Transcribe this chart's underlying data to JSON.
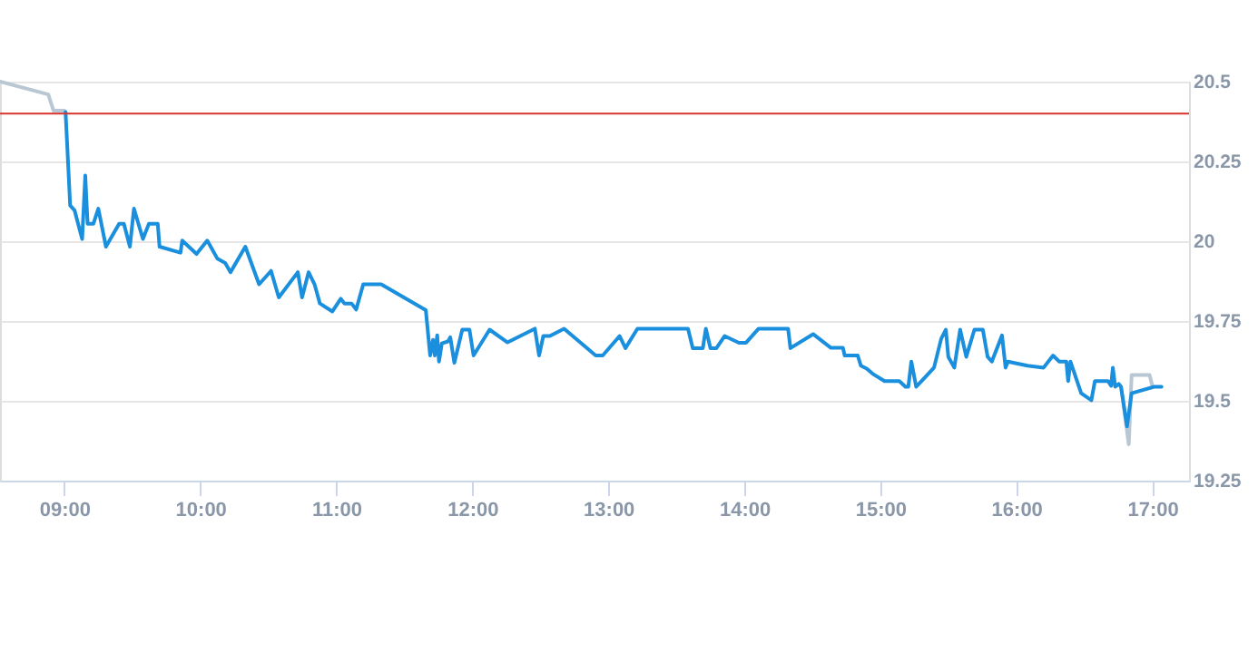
{
  "chart_data": {
    "type": "line",
    "xlim": [
      8.527,
      17.27
    ],
    "ylim": [
      19.25,
      20.5
    ],
    "xticks": [
      {
        "value": 9,
        "label": "09:00"
      },
      {
        "value": 10,
        "label": "10:00"
      },
      {
        "value": 11,
        "label": "11:00"
      },
      {
        "value": 12,
        "label": "12:00"
      },
      {
        "value": 13,
        "label": "13:00"
      },
      {
        "value": 14,
        "label": "14:00"
      },
      {
        "value": 15,
        "label": "15:00"
      },
      {
        "value": 16,
        "label": "16:00"
      },
      {
        "value": 17,
        "label": "17:00"
      }
    ],
    "yticks": [
      19.25,
      19.5,
      19.75,
      20,
      20.25,
      20.5
    ],
    "grid": "y",
    "marker": "none",
    "line_style": "solid",
    "ref_lines": [
      {
        "axis": "y",
        "value": 20.4,
        "color": "#d9342b"
      }
    ],
    "series": [
      {
        "color": "#b8c7d3",
        "x": [
          8.527,
          8.882,
          8.921,
          9.0
        ],
        "values": [
          20.5,
          20.46,
          20.409,
          20.409
        ]
      },
      {
        "color": "#b8c7d3",
        "x": [
          16.77,
          16.827,
          16.848,
          16.98,
          17.002
        ],
        "values": [
          19.544,
          19.364,
          19.581,
          19.581,
          19.544
        ]
      },
      {
        "color": "#1a8fdd",
        "x": [
          9.009,
          9.043,
          9.075,
          9.131,
          9.154,
          9.171,
          9.214,
          9.25,
          9.306,
          9.403,
          9.438,
          9.482,
          9.512,
          9.578,
          9.622,
          9.687,
          9.7,
          9.854,
          9.867,
          9.972,
          10.051,
          10.126,
          10.183,
          10.222,
          10.331,
          10.432,
          10.52,
          10.577,
          10.717,
          10.748,
          10.796,
          10.84,
          10.879,
          10.971,
          11.033,
          11.059,
          11.112,
          11.146,
          11.198,
          11.33,
          11.658,
          11.69,
          11.711,
          11.724,
          11.742,
          11.755,
          11.776,
          11.821,
          11.838,
          11.868,
          11.926,
          11.979,
          12.009,
          12.127,
          12.259,
          12.46,
          12.491,
          12.522,
          12.57,
          12.675,
          12.907,
          12.959,
          13.083,
          13.126,
          13.214,
          13.586,
          13.621,
          13.695,
          13.717,
          13.751,
          13.795,
          13.855,
          13.96,
          14.013,
          14.105,
          14.322,
          14.339,
          14.506,
          14.637,
          14.725,
          14.738,
          14.834,
          14.857,
          14.9,
          14.943,
          15.031,
          15.14,
          15.185,
          15.206,
          15.228,
          15.264,
          15.395,
          15.448,
          15.482,
          15.5,
          15.544,
          15.587,
          15.632,
          15.692,
          15.754,
          15.789,
          15.82,
          15.895,
          15.921,
          15.938,
          16.082,
          16.201,
          16.27,
          16.315,
          16.368,
          16.381,
          16.398,
          16.477,
          16.552,
          16.578,
          16.674,
          16.697,
          16.71,
          16.727,
          16.753,
          16.77,
          16.814,
          16.848,
          17.015,
          17.068
        ],
        "values": [
          20.405,
          20.112,
          20.097,
          20.007,
          20.206,
          20.055,
          20.055,
          20.102,
          19.983,
          20.055,
          20.055,
          19.983,
          20.102,
          20.007,
          20.055,
          20.055,
          19.983,
          19.964,
          20.002,
          19.96,
          20.002,
          19.945,
          19.932,
          19.903,
          19.983,
          19.865,
          19.907,
          19.824,
          19.903,
          19.824,
          19.903,
          19.865,
          19.805,
          19.78,
          19.82,
          19.805,
          19.805,
          19.786,
          19.865,
          19.865,
          19.784,
          19.642,
          19.691,
          19.642,
          19.705,
          19.623,
          19.68,
          19.686,
          19.699,
          19.619,
          19.723,
          19.723,
          19.642,
          19.723,
          19.683,
          19.726,
          19.642,
          19.703,
          19.703,
          19.726,
          19.642,
          19.642,
          19.703,
          19.665,
          19.726,
          19.726,
          19.665,
          19.665,
          19.726,
          19.665,
          19.665,
          19.703,
          19.682,
          19.682,
          19.726,
          19.726,
          19.665,
          19.709,
          19.666,
          19.666,
          19.642,
          19.642,
          19.61,
          19.601,
          19.585,
          19.562,
          19.562,
          19.544,
          19.544,
          19.623,
          19.544,
          19.604,
          19.695,
          19.723,
          19.638,
          19.604,
          19.723,
          19.638,
          19.723,
          19.723,
          19.638,
          19.623,
          19.705,
          19.604,
          19.623,
          19.61,
          19.604,
          19.642,
          19.623,
          19.623,
          19.562,
          19.623,
          19.524,
          19.502,
          19.562,
          19.562,
          19.547,
          19.604,
          19.544,
          19.553,
          19.544,
          19.42,
          19.524,
          19.544,
          19.544
        ]
      }
    ]
  }
}
